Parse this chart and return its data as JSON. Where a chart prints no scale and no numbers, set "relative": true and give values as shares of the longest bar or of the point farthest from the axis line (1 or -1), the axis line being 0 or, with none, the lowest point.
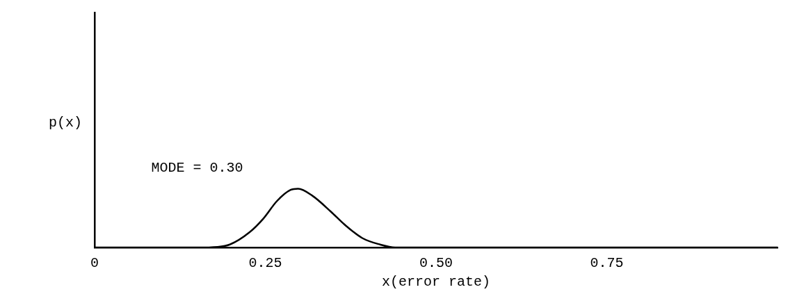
{
  "chart_data": {
    "type": "line",
    "xlabel": "x(error rate)",
    "ylabel": "p(x)",
    "relative": true,
    "annotations": [
      "MODE = 0.30"
    ],
    "series": [
      {
        "color": "#000000",
        "x": [
          0,
          0.1,
          0.15,
          0.18,
          0.198,
          0.227,
          0.247,
          0.267,
          0.287,
          0.298,
          0.319,
          0.346,
          0.366,
          0.392,
          0.418,
          0.44,
          0.5,
          0.75,
          1
        ],
        "values": [
          0,
          0,
          0,
          0.01,
          0.05,
          0.26,
          0.49,
          0.79,
          0.98,
          1,
          0.88,
          0.61,
          0.39,
          0.16,
          0.05,
          0,
          0,
          0,
          0
        ]
      }
    ],
    "xlim": [
      0,
      1
    ],
    "xticks": [
      0,
      0.25,
      {
        "value": 0.5,
        "label": "0.50"
      },
      0.75
    ],
    "grid": false,
    "legend": false,
    "marker": "none",
    "line_style": "solid"
  }
}
